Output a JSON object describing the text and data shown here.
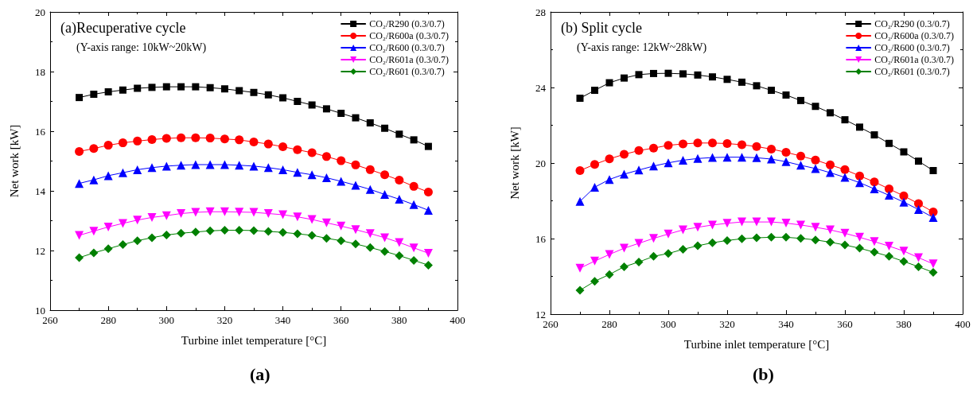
{
  "chart_data": [
    {
      "type": "line",
      "title": "(a)Recuperative cycle",
      "subtitle": "(Y-axis range: 10kW~20kW)",
      "xlabel": "Turbine inlet temperature [°C]",
      "ylabel": "Net work [kW]",
      "annotations": [
        "(a)"
      ],
      "x": [
        270,
        275,
        280,
        285,
        290,
        295,
        300,
        305,
        310,
        315,
        320,
        325,
        330,
        335,
        340,
        345,
        350,
        355,
        360,
        365,
        370,
        375,
        380,
        385,
        390
      ],
      "xlim": [
        260,
        400
      ],
      "xticks": [
        260,
        280,
        300,
        320,
        340,
        360,
        380,
        400
      ],
      "ylim": [
        10,
        20
      ],
      "yticks": [
        10,
        12,
        14,
        16,
        18,
        20
      ],
      "grid": false,
      "legend": "top right",
      "line_style": "solid",
      "series": [
        {
          "name": "CO₂/R290 (0.3/0.7)",
          "color": "#000000",
          "marker": "square",
          "values": [
            17.13,
            17.24,
            17.32,
            17.38,
            17.44,
            17.47,
            17.49,
            17.49,
            17.49,
            17.46,
            17.42,
            17.36,
            17.3,
            17.22,
            17.12,
            17.0,
            16.88,
            16.75,
            16.6,
            16.45,
            16.28,
            16.1,
            15.9,
            15.71,
            15.49
          ]
        },
        {
          "name": "CO₂/R600a (0.3/0.7)",
          "color": "#ff0000",
          "marker": "circle",
          "values": [
            15.32,
            15.42,
            15.53,
            15.61,
            15.67,
            15.72,
            15.76,
            15.78,
            15.78,
            15.77,
            15.74,
            15.71,
            15.64,
            15.57,
            15.48,
            15.38,
            15.28,
            15.15,
            15.01,
            14.87,
            14.71,
            14.54,
            14.36,
            14.15,
            13.96
          ]
        },
        {
          "name": "CO₂/R600 (0.3/0.7)",
          "color": "#0000ff",
          "marker": "triangle",
          "values": [
            14.25,
            14.37,
            14.51,
            14.61,
            14.71,
            14.78,
            14.83,
            14.86,
            14.88,
            14.88,
            14.88,
            14.86,
            14.83,
            14.78,
            14.71,
            14.62,
            14.54,
            14.44,
            14.32,
            14.19,
            14.05,
            13.88,
            13.72,
            13.54,
            13.35
          ]
        },
        {
          "name": "CO₂/R601a (0.3/0.7)",
          "color": "#ff00ff",
          "marker": "triangle-down",
          "values": [
            12.51,
            12.65,
            12.79,
            12.91,
            13.02,
            13.11,
            13.17,
            13.24,
            13.28,
            13.3,
            13.3,
            13.29,
            13.28,
            13.24,
            13.2,
            13.13,
            13.04,
            12.93,
            12.82,
            12.7,
            12.57,
            12.43,
            12.27,
            12.09,
            11.91
          ]
        },
        {
          "name": "CO₂/R601 (0.3/0.7)",
          "color": "#008000",
          "marker": "diamond",
          "values": [
            11.76,
            11.92,
            12.06,
            12.2,
            12.33,
            12.43,
            12.52,
            12.58,
            12.62,
            12.66,
            12.68,
            12.68,
            12.67,
            12.64,
            12.61,
            12.56,
            12.51,
            12.41,
            12.33,
            12.22,
            12.1,
            11.97,
            11.83,
            11.67,
            11.51
          ]
        }
      ]
    },
    {
      "type": "line",
      "title": "(b) Split cycle",
      "subtitle": "(Y-axis range: 12kW~28kW)",
      "xlabel": "Turbine inlet temperature [°C]",
      "ylabel": "Net work [kW]",
      "annotations": [
        "(b)"
      ],
      "x": [
        270,
        275,
        280,
        285,
        290,
        295,
        300,
        305,
        310,
        315,
        320,
        325,
        330,
        335,
        340,
        345,
        350,
        355,
        360,
        365,
        370,
        375,
        380,
        385,
        390
      ],
      "xlim": [
        260,
        400
      ],
      "xticks": [
        260,
        280,
        300,
        320,
        340,
        360,
        380,
        400
      ],
      "ylim": [
        12,
        28
      ],
      "yticks": [
        12,
        16,
        20,
        24,
        28
      ],
      "grid": false,
      "legend": "top right",
      "line_style": "solid",
      "series": [
        {
          "name": "CO₂/R290 (0.3/0.7)",
          "color": "#000000",
          "marker": "square",
          "values": [
            23.43,
            23.85,
            24.25,
            24.5,
            24.68,
            24.74,
            24.75,
            24.72,
            24.66,
            24.56,
            24.43,
            24.28,
            24.09,
            23.85,
            23.6,
            23.31,
            23.0,
            22.66,
            22.29,
            21.9,
            21.49,
            21.04,
            20.59,
            20.1,
            19.6
          ]
        },
        {
          "name": "CO₂/R600a (0.3/0.7)",
          "color": "#ff0000",
          "marker": "circle",
          "values": [
            19.6,
            19.93,
            20.22,
            20.46,
            20.66,
            20.79,
            20.94,
            21.01,
            21.06,
            21.06,
            21.03,
            20.97,
            20.87,
            20.74,
            20.57,
            20.37,
            20.16,
            19.9,
            19.65,
            19.32,
            19.0,
            18.63,
            18.26,
            17.85,
            17.41
          ]
        },
        {
          "name": "CO₂/R600 (0.3/0.7)",
          "color": "#0000ff",
          "marker": "triangle",
          "values": [
            17.97,
            18.72,
            19.13,
            19.41,
            19.63,
            19.84,
            20.01,
            20.15,
            20.24,
            20.29,
            20.31,
            20.31,
            20.28,
            20.21,
            20.07,
            19.88,
            19.71,
            19.49,
            19.24,
            18.96,
            18.63,
            18.29,
            17.93,
            17.54,
            17.12
          ]
        },
        {
          "name": "CO₂/R601a (0.3/0.7)",
          "color": "#ff00ff",
          "marker": "triangle-down",
          "values": [
            14.43,
            14.81,
            15.16,
            15.49,
            15.75,
            16.01,
            16.24,
            16.46,
            16.6,
            16.72,
            16.81,
            16.88,
            16.88,
            16.88,
            16.82,
            16.72,
            16.6,
            16.46,
            16.28,
            16.07,
            15.84,
            15.6,
            15.34,
            14.99,
            14.66
          ]
        },
        {
          "name": "CO₂/R601 (0.3/0.7)",
          "color": "#008000",
          "marker": "diamond",
          "values": [
            13.26,
            13.74,
            14.1,
            14.51,
            14.76,
            15.06,
            15.21,
            15.43,
            15.62,
            15.78,
            15.9,
            15.99,
            16.04,
            16.07,
            16.07,
            16.01,
            15.93,
            15.81,
            15.66,
            15.49,
            15.28,
            15.06,
            14.79,
            14.51,
            14.21
          ]
        }
      ]
    }
  ]
}
